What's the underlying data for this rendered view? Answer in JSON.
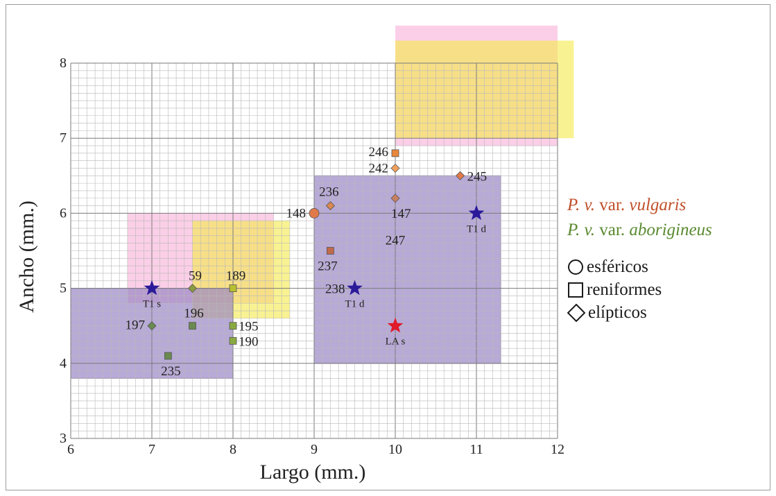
{
  "chart_data": {
    "type": "scatter",
    "xlabel": "Largo (mm.)",
    "ylabel": "Ancho (mm.)",
    "xlim": [
      6,
      12
    ],
    "ylim": [
      3,
      8
    ],
    "xticks": [
      "6",
      "7",
      "8",
      "9",
      "10",
      "11",
      "12"
    ],
    "yticks": [
      "3",
      "4",
      "5",
      "6",
      "7",
      "8"
    ],
    "grid": true,
    "minor_grid_step": 0.1,
    "regions": [
      {
        "x": [
          10,
          12
        ],
        "y": [
          6.9,
          8.5
        ],
        "color": "#f7a8d4",
        "opacity": 0.55
      },
      {
        "x": [
          10,
          12.2
        ],
        "y": [
          7.0,
          8.3
        ],
        "color": "#f5e94a",
        "opacity": 0.6
      },
      {
        "x": [
          6.7,
          8.5
        ],
        "y": [
          4.8,
          6.0
        ],
        "color": "#f7a8d4",
        "opacity": 0.55
      },
      {
        "x": [
          7.5,
          8.7
        ],
        "y": [
          4.6,
          5.9
        ],
        "color": "#f5e94a",
        "opacity": 0.6
      },
      {
        "x": [
          6,
          8
        ],
        "y": [
          3.8,
          5.0
        ],
        "color": "#9a86c4",
        "opacity": 0.7
      },
      {
        "x": [
          9,
          11.3
        ],
        "y": [
          4.0,
          6.5
        ],
        "color": "#9a86c4",
        "opacity": 0.7
      }
    ],
    "points": [
      {
        "label": "246",
        "x": 10.0,
        "y": 6.8,
        "shape": "square",
        "color": "#e8863c"
      },
      {
        "label": "242",
        "x": 10.0,
        "y": 6.6,
        "shape": "diamond",
        "color": "#f0a05a"
      },
      {
        "label": "245",
        "x": 10.8,
        "y": 6.5,
        "shape": "diamond",
        "color": "#e07a4a"
      },
      {
        "label": "236",
        "x": 9.2,
        "y": 6.1,
        "shape": "diamond",
        "color": "#d98850"
      },
      {
        "label": "147",
        "x": 10.0,
        "y": 6.2,
        "shape": "diamond",
        "color": "#c78060"
      },
      {
        "label": "148",
        "x": 9.0,
        "y": 6.0,
        "shape": "circle",
        "color": "#e07a4a"
      },
      {
        "label": "237",
        "x": 9.2,
        "y": 5.5,
        "shape": "square",
        "color": "#c06a4a"
      },
      {
        "label": "59",
        "x": 7.5,
        "y": 5.0,
        "shape": "diamond",
        "color": "#8a9a40"
      },
      {
        "label": "189",
        "x": 8.0,
        "y": 5.0,
        "shape": "square",
        "color": "#b8c030"
      },
      {
        "label": "196",
        "x": 7.5,
        "y": 4.5,
        "shape": "square",
        "color": "#6a8a50"
      },
      {
        "label": "195",
        "x": 8.0,
        "y": 4.5,
        "shape": "square",
        "color": "#8aaa40"
      },
      {
        "label": "190",
        "x": 8.0,
        "y": 4.3,
        "shape": "square",
        "color": "#8aaa40"
      },
      {
        "label": "197",
        "x": 7.0,
        "y": 4.5,
        "shape": "diamond",
        "color": "#6a8a50"
      },
      {
        "label": "235",
        "x": 7.2,
        "y": 4.1,
        "shape": "square",
        "color": "#6a8a50"
      },
      {
        "label": "T1 s",
        "x": 7.0,
        "y": 5.0,
        "shape": "star",
        "color": "#2a1a9a"
      },
      {
        "label": "T1 d",
        "x": 9.5,
        "y": 5.0,
        "shape": "star",
        "color": "#2a1a9a"
      },
      {
        "label": "T1 d",
        "x": 11.0,
        "y": 6.0,
        "shape": "star",
        "color": "#2a1a9a"
      },
      {
        "label": "LA s",
        "x": 10.0,
        "y": 4.5,
        "shape": "star",
        "color": "#e01a2a"
      }
    ],
    "extra_labels": [
      {
        "text": "247",
        "x": 10.0,
        "y": 5.65
      },
      {
        "text": "238",
        "x": 9.5,
        "y": 5.0
      }
    ]
  },
  "legend": {
    "vulgaris": {
      "species": "P. v.",
      "var": "var.",
      "name": "vulgaris",
      "color": "#c0502a"
    },
    "aborigineus": {
      "species": "P. v.",
      "var": "var.",
      "name": "aborigineus",
      "color": "#5a8a30"
    },
    "shapes": [
      {
        "shape": "circle",
        "label": "esféricos"
      },
      {
        "shape": "square",
        "label": "reniformes"
      },
      {
        "shape": "diamond",
        "label": "elípticos"
      }
    ]
  }
}
